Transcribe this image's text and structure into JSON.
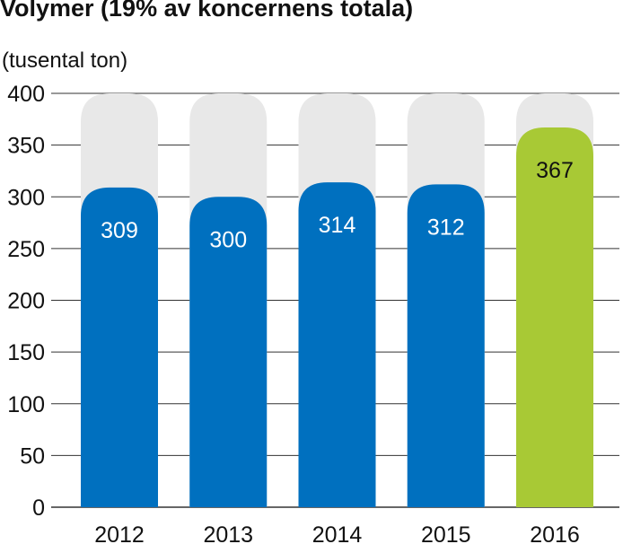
{
  "chart_data": {
    "type": "bar",
    "title": "Volymer (19% av koncernens totala)",
    "unit_label": "(tusental ton)",
    "categories": [
      "2012",
      "2013",
      "2014",
      "2015",
      "2016"
    ],
    "values": [
      309,
      300,
      314,
      312,
      367
    ],
    "data_labels": [
      "309",
      "300",
      "314",
      "312",
      "367"
    ],
    "ylim": [
      0,
      400
    ],
    "yticks": [
      0,
      50,
      100,
      150,
      200,
      250,
      300,
      350,
      400
    ],
    "grid": true,
    "colors": {
      "bar": "#0070bf",
      "highlight_bar": "#a8c935",
      "background_track": "#e8e8e8",
      "grid": "#333333",
      "label_on_bar": "#ffffff",
      "label_on_highlight": "#111111"
    },
    "highlight_index": 4
  }
}
